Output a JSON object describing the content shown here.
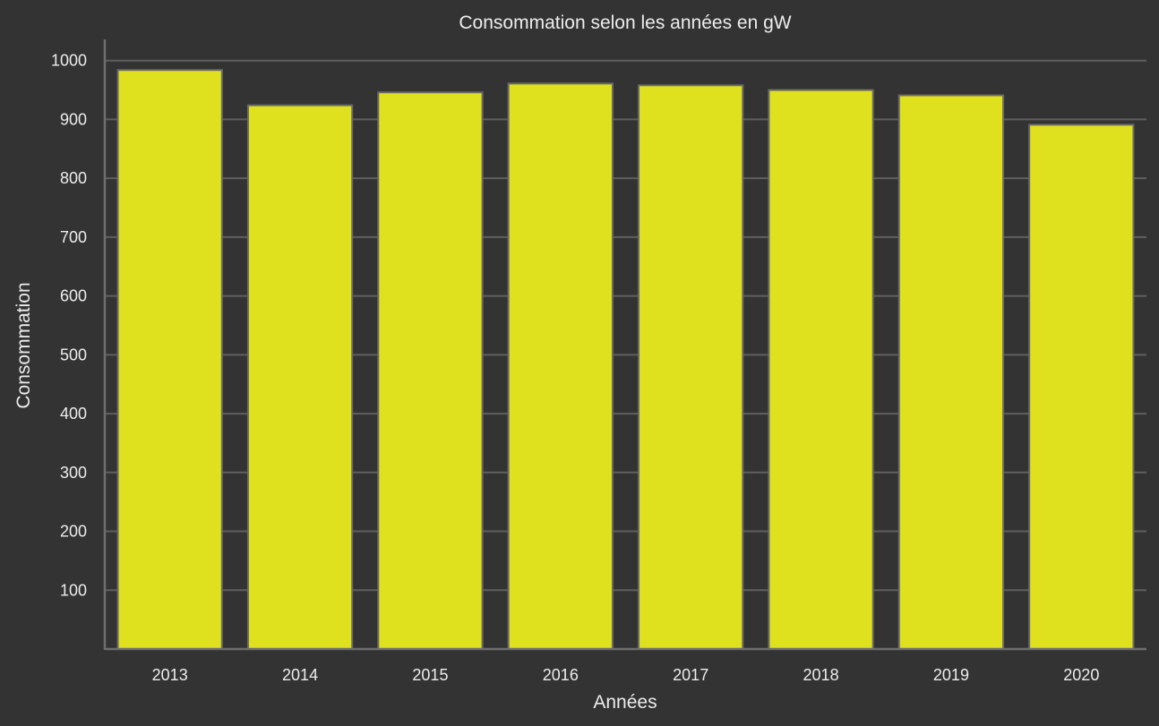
{
  "chart_data": {
    "type": "bar",
    "title": "Consommation selon les années en gW",
    "xlabel": "Années",
    "ylabel": "Consommation",
    "categories": [
      "2013",
      "2014",
      "2015",
      "2016",
      "2017",
      "2018",
      "2019",
      "2020"
    ],
    "values": [
      984,
      924,
      946,
      961,
      958,
      950,
      941,
      891
    ],
    "yticks": [
      100,
      200,
      300,
      400,
      500,
      600,
      700,
      800,
      900,
      1000
    ],
    "ylim": [
      0,
      1033
    ],
    "grid": true,
    "legend": "none",
    "bar_color": "#DFE01E",
    "background_color": "#333333",
    "grid_color": "#5F5F5F",
    "text_color": "#EDEDED"
  }
}
